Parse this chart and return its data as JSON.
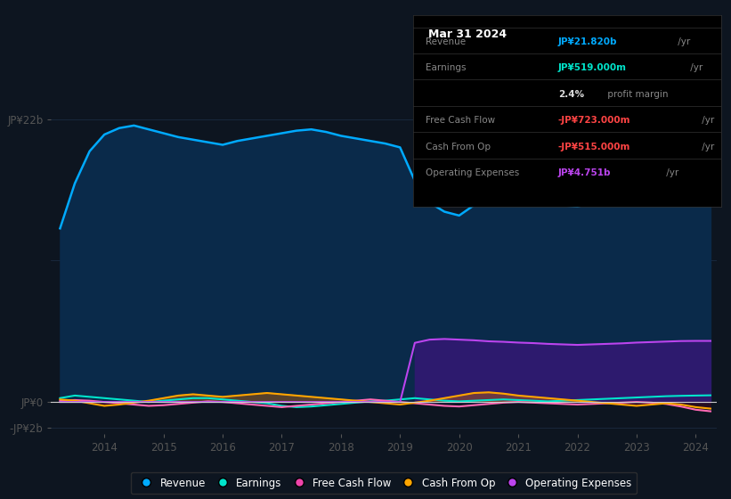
{
  "bg_color": "#0d1520",
  "plot_bg_color": "#0d1520",
  "info_box_bg": "#000000",
  "colors": {
    "revenue": "#00aaff",
    "earnings": "#00e5cc",
    "free_cash_flow": "#ff69b4",
    "cash_from_op": "#ffa500",
    "op_expenses": "#bb44ee",
    "op_expenses_fill": "#2d1a6e",
    "revenue_fill": "#0a2a4a",
    "grid": "#1e3048"
  },
  "years": [
    2013.25,
    2013.5,
    2013.75,
    2014.0,
    2014.25,
    2014.5,
    2014.75,
    2015.0,
    2015.25,
    2015.5,
    2015.75,
    2016.0,
    2016.25,
    2016.5,
    2016.75,
    2017.0,
    2017.25,
    2017.5,
    2017.75,
    2018.0,
    2018.25,
    2018.5,
    2018.75,
    2019.0,
    2019.25,
    2019.5,
    2019.75,
    2020.0,
    2020.25,
    2020.5,
    2020.75,
    2021.0,
    2021.25,
    2021.5,
    2021.75,
    2022.0,
    2022.25,
    2022.5,
    2022.75,
    2023.0,
    2023.25,
    2023.5,
    2023.75,
    2024.0,
    2024.25
  ],
  "revenue": [
    13.5,
    17.0,
    19.5,
    20.8,
    21.3,
    21.5,
    21.2,
    20.9,
    20.6,
    20.4,
    20.2,
    20.0,
    20.3,
    20.5,
    20.7,
    20.9,
    21.1,
    21.2,
    21.0,
    20.7,
    20.5,
    20.3,
    20.1,
    19.8,
    17.2,
    15.5,
    14.8,
    14.5,
    15.3,
    15.9,
    16.3,
    16.0,
    15.7,
    15.4,
    15.3,
    15.2,
    15.5,
    16.0,
    16.5,
    17.2,
    18.0,
    19.0,
    20.2,
    21.2,
    21.82
  ],
  "earnings": [
    0.3,
    0.5,
    0.4,
    0.3,
    0.2,
    0.1,
    0.0,
    0.1,
    0.2,
    0.3,
    0.3,
    0.2,
    0.1,
    0.0,
    -0.1,
    -0.3,
    -0.4,
    -0.35,
    -0.25,
    -0.15,
    -0.05,
    0.05,
    0.1,
    0.2,
    0.3,
    0.2,
    0.1,
    0.05,
    0.1,
    0.15,
    0.2,
    0.15,
    0.1,
    0.05,
    0.1,
    0.15,
    0.2,
    0.25,
    0.3,
    0.35,
    0.4,
    0.45,
    0.48,
    0.5,
    0.519
  ],
  "free_cash_flow": [
    0.1,
    0.15,
    0.1,
    0.0,
    -0.1,
    -0.2,
    -0.3,
    -0.25,
    -0.15,
    -0.05,
    0.05,
    0.0,
    -0.1,
    -0.2,
    -0.3,
    -0.4,
    -0.3,
    -0.2,
    -0.1,
    0.0,
    0.1,
    0.2,
    0.1,
    0.0,
    -0.1,
    -0.2,
    -0.3,
    -0.35,
    -0.25,
    -0.15,
    -0.05,
    0.0,
    -0.05,
    -0.1,
    -0.15,
    -0.2,
    -0.15,
    -0.1,
    -0.05,
    0.0,
    -0.05,
    -0.15,
    -0.35,
    -0.6,
    -0.723
  ],
  "cash_from_op": [
    0.2,
    0.1,
    -0.1,
    -0.3,
    -0.2,
    -0.05,
    0.1,
    0.3,
    0.5,
    0.6,
    0.5,
    0.4,
    0.5,
    0.6,
    0.7,
    0.6,
    0.5,
    0.4,
    0.3,
    0.2,
    0.1,
    0.0,
    -0.1,
    -0.2,
    -0.05,
    0.1,
    0.3,
    0.5,
    0.7,
    0.75,
    0.65,
    0.5,
    0.4,
    0.3,
    0.2,
    0.1,
    0.0,
    -0.1,
    -0.2,
    -0.3,
    -0.2,
    -0.1,
    -0.2,
    -0.4,
    -0.515
  ],
  "op_expenses": [
    0.0,
    0.0,
    0.0,
    0.0,
    0.0,
    0.0,
    0.0,
    0.0,
    0.0,
    0.0,
    0.0,
    0.0,
    0.0,
    0.0,
    0.0,
    0.0,
    0.0,
    0.0,
    0.0,
    0.0,
    0.0,
    0.0,
    0.0,
    0.0,
    4.6,
    4.85,
    4.9,
    4.85,
    4.8,
    4.72,
    4.68,
    4.62,
    4.58,
    4.52,
    4.48,
    4.44,
    4.48,
    4.52,
    4.56,
    4.62,
    4.66,
    4.7,
    4.74,
    4.751,
    4.751
  ],
  "ylim": [
    -2.5,
    23.5
  ],
  "xlim": [
    2013.1,
    2024.35
  ],
  "xticks": [
    2014,
    2015,
    2016,
    2017,
    2018,
    2019,
    2020,
    2021,
    2022,
    2023,
    2024
  ],
  "ytick_vals": [
    -2,
    0,
    22
  ],
  "ytick_labels": [
    "-JP¥2b",
    "JP¥0",
    "JP¥22b"
  ],
  "legend": [
    {
      "label": "Revenue",
      "color": "#00aaff"
    },
    {
      "label": "Earnings",
      "color": "#00e5cc"
    },
    {
      "label": "Free Cash Flow",
      "color": "#ee44aa"
    },
    {
      "label": "Cash From Op",
      "color": "#ffa500"
    },
    {
      "label": "Operating Expenses",
      "color": "#bb44ee"
    }
  ],
  "info_box": {
    "date": "Mar 31 2024",
    "rows": [
      {
        "label": "Revenue",
        "value": "JP¥21.820b",
        "unit": "/yr",
        "val_color": "#00aaff"
      },
      {
        "label": "Earnings",
        "value": "JP¥519.000m",
        "unit": "/yr",
        "val_color": "#00e5cc"
      },
      {
        "label": "",
        "value": "2.4%",
        "unit": "profit margin",
        "val_color": "#dddddd"
      },
      {
        "label": "Free Cash Flow",
        "value": "-JP¥723.000m",
        "unit": "/yr",
        "val_color": "#ff4444"
      },
      {
        "label": "Cash From Op",
        "value": "-JP¥515.000m",
        "unit": "/yr",
        "val_color": "#ff4444"
      },
      {
        "label": "Operating Expenses",
        "value": "JP¥4.751b",
        "unit": "/yr",
        "val_color": "#bb44ee"
      }
    ]
  }
}
